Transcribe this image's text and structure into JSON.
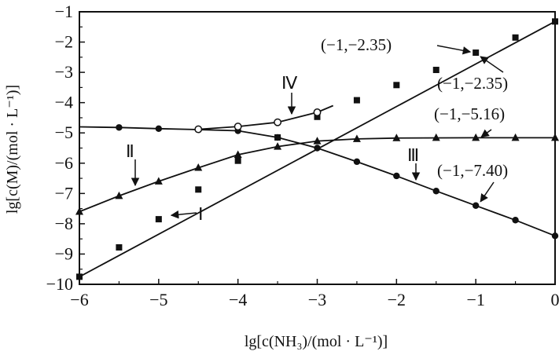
{
  "chart_data": {
    "type": "line",
    "xlabel": "lg[c(NH₃)/(mol · L⁻¹)]",
    "ylabel": "lg[c(M)/(mol · L⁻¹)]",
    "xlim": [
      -6,
      0
    ],
    "ylim": [
      -10,
      -1
    ],
    "x_ticks": [
      -6,
      -5,
      -4,
      -3,
      -2,
      -1,
      0
    ],
    "y_ticks": [
      -10,
      -9,
      -8,
      -7,
      -6,
      -5,
      -4,
      -3,
      -2,
      -1
    ],
    "grid": false,
    "series": [
      {
        "name": "Ⅰ",
        "marker": "square",
        "x": [
          -6,
          -5.5,
          -5,
          -4.5,
          -4,
          -3.5,
          -3,
          -2.5,
          -2,
          -1.5,
          -1,
          -0.5,
          0
        ],
        "y": [
          -9.75,
          -8.78,
          -7.85,
          -6.87,
          -5.92,
          -5.15,
          -4.47,
          -3.92,
          -3.42,
          -2.92,
          -2.35,
          -1.85,
          -1.32
        ]
      },
      {
        "name": "Ⅱ",
        "marker": "triangle",
        "x": [
          -6,
          -5.5,
          -5,
          -4.5,
          -4,
          -3.5,
          -3,
          -2.5,
          -2,
          -1.5,
          -1,
          -0.5,
          0
        ],
        "y": [
          -7.6,
          -7.08,
          -6.6,
          -6.15,
          -5.72,
          -5.45,
          -5.27,
          -5.2,
          -5.17,
          -5.16,
          -5.16,
          -5.16,
          -5.16
        ]
      },
      {
        "name": "Ⅲ",
        "marker": "circle",
        "x": [
          -5.5,
          -5,
          -4,
          -3.5,
          -3,
          -2.5,
          -2,
          -1.5,
          -1,
          -0.5,
          0
        ],
        "y": [
          -4.82,
          -4.86,
          -4.93,
          -5.15,
          -5.5,
          -5.95,
          -6.42,
          -6.92,
          -7.4,
          -7.88,
          -8.4
        ]
      },
      {
        "name": "Ⅳ",
        "marker": "open-circle",
        "x": [
          -4.5,
          -4,
          -3.5,
          -3
        ],
        "y": [
          -4.88,
          -4.79,
          -4.65,
          -4.32
        ]
      }
    ],
    "curve_paths": {
      "I": [
        [
          -6,
          -9.75
        ],
        [
          0,
          -1.32
        ]
      ],
      "II": [
        [
          -6,
          -7.6
        ],
        [
          -5.5,
          -7.08
        ],
        [
          -5,
          -6.6
        ],
        [
          -4.5,
          -6.15
        ],
        [
          -4,
          -5.72
        ],
        [
          -3.5,
          -5.45
        ],
        [
          -3,
          -5.27
        ],
        [
          -2.5,
          -5.2
        ],
        [
          -2,
          -5.17
        ],
        [
          -1,
          -5.16
        ],
        [
          0,
          -5.16
        ]
      ],
      "III": [
        [
          -6,
          -4.8
        ],
        [
          -5.5,
          -4.82
        ],
        [
          -5,
          -4.86
        ],
        [
          -4.5,
          -4.89
        ],
        [
          -4,
          -4.93
        ],
        [
          -3.5,
          -5.15
        ],
        [
          -3,
          -5.5
        ],
        [
          -2.5,
          -5.95
        ],
        [
          -2,
          -6.42
        ],
        [
          -1.5,
          -6.92
        ],
        [
          -1,
          -7.4
        ],
        [
          -0.5,
          -7.88
        ],
        [
          0,
          -8.4
        ]
      ],
      "IV": [
        [
          -4.5,
          -4.88
        ],
        [
          -4,
          -4.79
        ],
        [
          -3.5,
          -4.65
        ],
        [
          -3,
          -4.32
        ],
        [
          -2.8,
          -4.1
        ]
      ]
    },
    "labels": {
      "series_I": "Ⅰ",
      "series_II": "Ⅱ",
      "series_III": "Ⅲ",
      "series_IV": "Ⅳ"
    },
    "annotations": [
      {
        "id": "a1",
        "text": "(−1,−2.35)"
      },
      {
        "id": "a2",
        "text": "(−1,−2.35)"
      },
      {
        "id": "a3",
        "text": "(−1,−5.16)"
      },
      {
        "id": "a4",
        "text": "(−1,−7.40)"
      }
    ]
  }
}
